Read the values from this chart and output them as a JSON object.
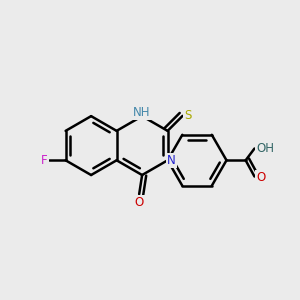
{
  "bg_color": "#ebebeb",
  "bond_color": "#000000",
  "bond_width": 1.8,
  "figsize": [
    3.0,
    3.0
  ],
  "dpi": 100,
  "colors": {
    "N": "#2222cc",
    "NH": "#4488aa",
    "S": "#aaaa00",
    "O": "#cc0000",
    "F": "#cc22cc",
    "OH": "#336666",
    "C": "#000000"
  }
}
